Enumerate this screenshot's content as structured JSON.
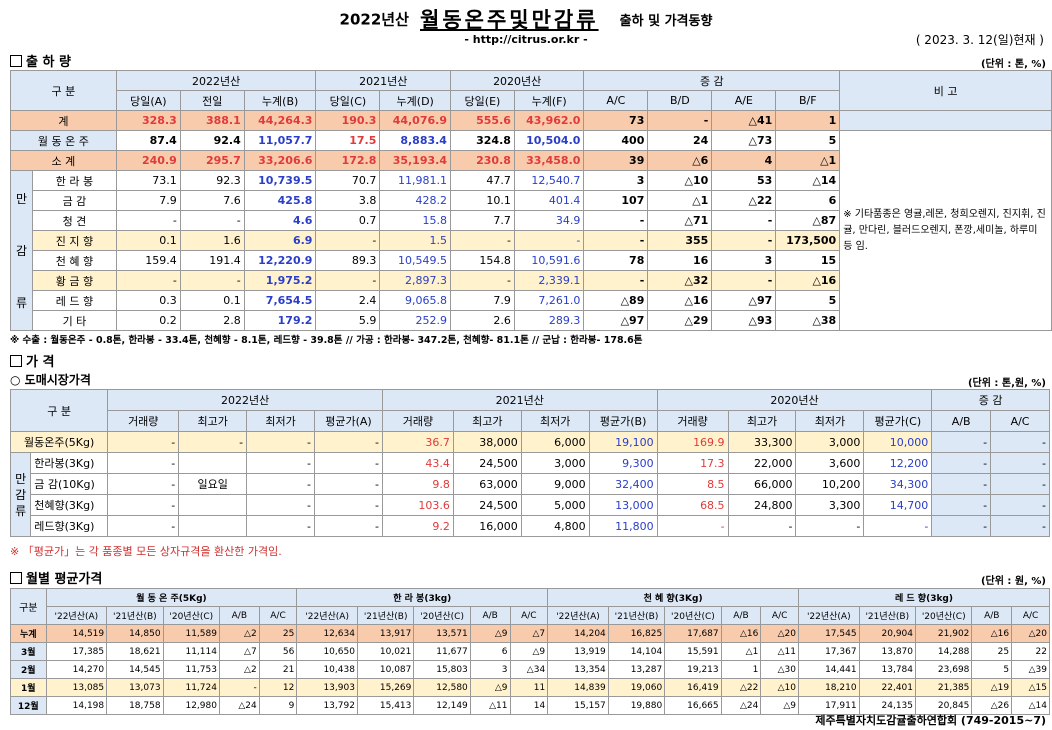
{
  "header": {
    "year": "2022년산",
    "title": "월동온주및만감류",
    "subtitle": "출하 및 가격동향",
    "url": "- http://citrus.or.kr -",
    "date": "( 2023. 3. 12(일)현재 )"
  },
  "shipment": {
    "section": "출 하 량",
    "unit": "(단위 : 톤, %)",
    "cols": {
      "gubun": "구  분",
      "y2022": "2022년산",
      "y2021": "2021년산",
      "y2020": "2020년산",
      "change": "증    감",
      "remark": "비  고",
      "sub": [
        "당일(A)",
        "전일",
        "누계(B)",
        "당일(C)",
        "누계(D)",
        "당일(E)",
        "누계(F)",
        "A/C",
        "B/D",
        "A/E",
        "B/F"
      ]
    },
    "rows": [
      {
        "label": "계",
        "v": [
          "328.3",
          "388.1",
          "44,264.3",
          "190.3",
          "44,076.9",
          "555.6",
          "43,962.0",
          "73",
          "-",
          "△41",
          "1"
        ]
      },
      {
        "label": "월 동 온 주",
        "v": [
          "87.4",
          "92.4",
          "11,057.7",
          "17.5",
          "8,883.4",
          "324.8",
          "10,504.0",
          "400",
          "24",
          "△73",
          "5"
        ]
      },
      {
        "label": "소   계",
        "v": [
          "240.9",
          "295.7",
          "33,206.6",
          "172.8",
          "35,193.4",
          "230.8",
          "33,458.0",
          "39",
          "△6",
          "4",
          "△1"
        ]
      },
      {
        "label": "한 라 봉",
        "v": [
          "73.1",
          "92.3",
          "10,739.5",
          "70.7",
          "11,981.1",
          "47.7",
          "12,540.7",
          "3",
          "△10",
          "53",
          "△14"
        ]
      },
      {
        "label": "금   감",
        "v": [
          "7.9",
          "7.6",
          "425.8",
          "3.8",
          "428.2",
          "10.1",
          "401.4",
          "107",
          "△1",
          "△22",
          "6"
        ]
      },
      {
        "label": "청   견",
        "v": [
          "-",
          "-",
          "4.6",
          "0.7",
          "15.8",
          "7.7",
          "34.9",
          "-",
          "△71",
          "-",
          "△87"
        ]
      },
      {
        "label": "진 지 향",
        "v": [
          "0.1",
          "1.6",
          "6.9",
          "-",
          "1.5",
          "-",
          "-",
          "-",
          "355",
          "-",
          "173,500"
        ]
      },
      {
        "label": "천 혜 향",
        "v": [
          "159.4",
          "191.4",
          "12,220.9",
          "89.3",
          "10,549.5",
          "154.8",
          "10,591.6",
          "78",
          "16",
          "3",
          "15"
        ]
      },
      {
        "label": "황 금 향",
        "v": [
          "-",
          "-",
          "1,975.2",
          "-",
          "2,897.3",
          "-",
          "2,339.1",
          "-",
          "△32",
          "-",
          "△16"
        ]
      },
      {
        "label": "레 드 향",
        "v": [
          "0.3",
          "0.1",
          "7,654.5",
          "2.4",
          "9,065.8",
          "7.9",
          "7,261.0",
          "△89",
          "△16",
          "△97",
          "5"
        ]
      },
      {
        "label": "기   타",
        "v": [
          "0.2",
          "2.8",
          "179.2",
          "5.9",
          "252.9",
          "2.6",
          "289.3",
          "△97",
          "△29",
          "△93",
          "△38"
        ]
      }
    ],
    "group": "만감류",
    "remark": "※ 기타품종은 영귤,레몬, 청희오렌지, 진지휘, 진귤, 만다린, 블러드오렌지, 폰깡,세미놀, 하루미 등 임.",
    "note": "※ 수출 : 월동온주 - 0.8톤, 한라봉 - 33.4톤, 천혜향 - 8.1톤, 레드향 - 39.8톤  //  가공  :  한라봉- 347.2톤, 천혜향- 81.1톤  //  군납 : 한라봉- 178.6톤"
  },
  "price": {
    "section": "가      격",
    "subsection": "○ 도매시장가격",
    "unit": "(단위 : 톤,원, %)",
    "cols": {
      "gubun": "구    분",
      "y2022": "2022년산",
      "y2021": "2021년산",
      "y2020": "2020년산",
      "change": "증    감",
      "sub": [
        "거래량",
        "최고가",
        "최저가",
        "평균가(A)",
        "거래량",
        "최고가",
        "최저가",
        "평균가(B)",
        "거래량",
        "최고가",
        "최저가",
        "평균가(C)",
        "A/B",
        "A/C"
      ]
    },
    "rows": [
      {
        "label": "월동온주(5Kg)",
        "v": [
          "-",
          "-",
          "-",
          "-",
          "36.7",
          "38,000",
          "6,000",
          "19,100",
          "169.9",
          "33,300",
          "3,000",
          "10,000",
          "-",
          "-"
        ]
      },
      {
        "label": "한라봉(3Kg)",
        "v": [
          "-",
          "",
          "-",
          "-",
          "43.4",
          "24,500",
          "3,000",
          "9,300",
          "17.3",
          "22,000",
          "3,600",
          "12,200",
          "-",
          "-"
        ]
      },
      {
        "label": "금 감(10Kg)",
        "v": [
          "-",
          "일요일",
          "-",
          "-",
          "9.8",
          "63,000",
          "9,000",
          "32,400",
          "8.5",
          "66,000",
          "10,200",
          "34,300",
          "-",
          "-"
        ]
      },
      {
        "label": "천혜향(3Kg)",
        "v": [
          "-",
          "",
          "-",
          "-",
          "103.6",
          "24,500",
          "5,000",
          "13,000",
          "68.5",
          "24,800",
          "3,300",
          "14,700",
          "-",
          "-"
        ]
      },
      {
        "label": "레드향(3Kg)",
        "v": [
          "-",
          "",
          "-",
          "-",
          "9.2",
          "16,000",
          "4,800",
          "11,800",
          "-",
          "-",
          "-",
          "-",
          "-",
          "-"
        ]
      }
    ],
    "group": "만감류",
    "note": "※ 「평균가」는 각 품종별 모든 상자규격을 환산한 가격임."
  },
  "monthly": {
    "section": "월별 평균가격",
    "unit": "(단위 : 원, %)",
    "gubun": "구분",
    "groups": [
      "월 동 온 주(5Kg)",
      "한 라 봉(3kg)",
      "천 혜 향(3Kg)",
      "레 드 향(3kg)"
    ],
    "sub": [
      "'22년산(A)",
      "'21년산(B)",
      "'20년산(C)",
      "A/B",
      "A/C"
    ],
    "rows": [
      {
        "label": "누계",
        "v": [
          "14,519",
          "14,850",
          "11,589",
          "△2",
          "25",
          "12,634",
          "13,917",
          "13,571",
          "△9",
          "△7",
          "14,204",
          "16,825",
          "17,687",
          "△16",
          "△20",
          "17,545",
          "20,904",
          "21,902",
          "△16",
          "△20"
        ]
      },
      {
        "label": "3월",
        "v": [
          "17,385",
          "18,621",
          "11,114",
          "△7",
          "56",
          "10,650",
          "10,021",
          "11,677",
          "6",
          "△9",
          "13,919",
          "14,104",
          "15,591",
          "△1",
          "△11",
          "17,367",
          "13,870",
          "14,288",
          "25",
          "22"
        ]
      },
      {
        "label": "2월",
        "v": [
          "14,270",
          "14,545",
          "11,753",
          "△2",
          "21",
          "10,438",
          "10,087",
          "15,803",
          "3",
          "△34",
          "13,354",
          "13,287",
          "19,213",
          "1",
          "△30",
          "14,441",
          "13,784",
          "23,698",
          "5",
          "△39"
        ]
      },
      {
        "label": "1월",
        "v": [
          "13,085",
          "13,073",
          "11,724",
          "-",
          "12",
          "13,903",
          "15,269",
          "12,580",
          "△9",
          "11",
          "14,839",
          "19,060",
          "16,419",
          "△22",
          "△10",
          "18,210",
          "22,401",
          "21,385",
          "△19",
          "△15"
        ]
      },
      {
        "label": "12월",
        "v": [
          "14,198",
          "18,758",
          "12,980",
          "△24",
          "9",
          "13,792",
          "15,413",
          "12,149",
          "△11",
          "14",
          "15,157",
          "19,880",
          "16,665",
          "△24",
          "△9",
          "17,911",
          "24,135",
          "20,845",
          "△26",
          "△14"
        ]
      }
    ]
  },
  "footer": "제주특별자치도감귤출하연합회 (749-2015~7)"
}
